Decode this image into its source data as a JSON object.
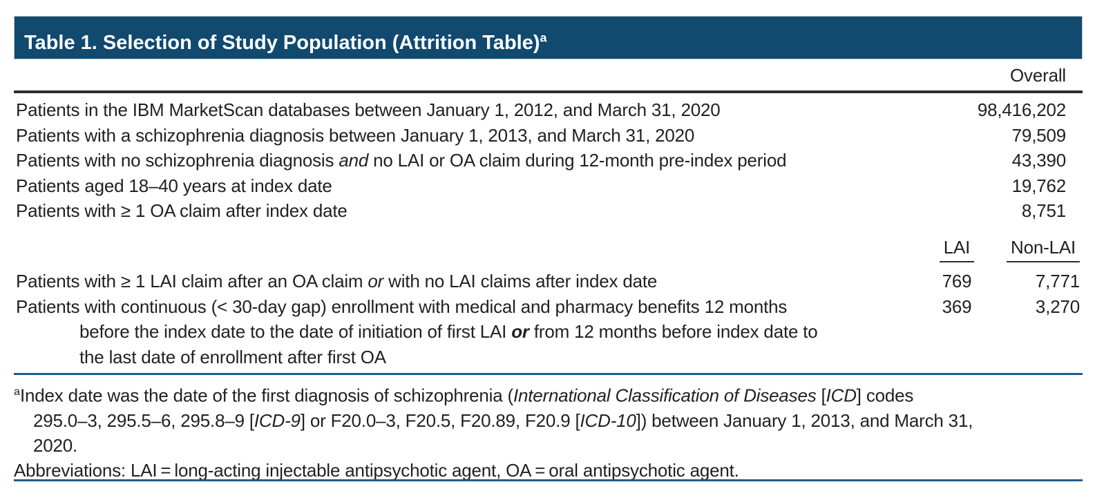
{
  "colors": {
    "header_bar": "#11496F",
    "rule_blue": "#1F5B8D",
    "rule_dark": "#2E2E2E",
    "text": "#231F20"
  },
  "table": {
    "title_runs": [
      {
        "t": "Table 1. Selection of Study Population (Attrition Table)"
      },
      {
        "t": "a",
        "sup": true
      }
    ],
    "header": {
      "overall": "Overall",
      "lai": "LAI",
      "nonlai": "Non-LAI"
    },
    "overall_rows": [
      {
        "label_runs": [
          {
            "t": "Patients in the IBM MarketScan databases between January 1, 2012, and March 31, 2020"
          }
        ],
        "value": "98,416,202"
      },
      {
        "label_runs": [
          {
            "t": "Patients with a schizophrenia diagnosis between January 1, 2013, and March 31, 2020"
          }
        ],
        "value": "79,509"
      },
      {
        "label_runs": [
          {
            "t": "Patients with no schizophrenia diagnosis "
          },
          {
            "t": "and",
            "i": true
          },
          {
            "t": " no LAI or OA claim during 12-month pre-index period"
          }
        ],
        "value": "43,390"
      },
      {
        "label_runs": [
          {
            "t": "Patients aged 18–40 years at index date"
          }
        ],
        "value": "19,762"
      },
      {
        "label_runs": [
          {
            "t": "Patients with ≥ 1 OA claim after index date"
          }
        ],
        "value": "8,751"
      }
    ],
    "group_rows": [
      {
        "label_runs": [
          {
            "t": "Patients with ≥ 1 LAI claim after an OA claim "
          },
          {
            "t": "or",
            "i": true
          },
          {
            "t": " with no LAI claims after index date"
          }
        ],
        "lai": "769",
        "nonlai": "7,771"
      },
      {
        "label_runs": [
          {
            "t": "Patients with continuous (< 30-day gap) enrollment with medical and pharmacy benefits 12 months"
          },
          {
            "br": true
          },
          {
            "t": "before the index date to the date of initiation of first LAI "
          },
          {
            "t": "or",
            "b": true,
            "i": true
          },
          {
            "t": " from 12 months before index date to"
          },
          {
            "br": true
          },
          {
            "t": "the last date of enrollment after first OA"
          }
        ],
        "lai": "369",
        "nonlai": "3,270"
      }
    ],
    "footnotes": {
      "a_runs": [
        {
          "t": "a",
          "sup": true
        },
        {
          "t": "Index date was the date of the first diagnosis of schizophrenia ("
        },
        {
          "t": "International Classification of Diseases",
          "i": true
        },
        {
          "t": " ["
        },
        {
          "t": "ICD",
          "i": true
        },
        {
          "t": "] codes"
        },
        {
          "br": true
        },
        {
          "t": "295.0–3, 295.5–6, 295.8–9 ["
        },
        {
          "t": "ICD-9",
          "i": true
        },
        {
          "t": "] or F20.0–3, F20.5, F20.89, F20.9 ["
        },
        {
          "t": "ICD-10",
          "i": true
        },
        {
          "t": "]) between January 1, 2013, and March 31,"
        },
        {
          "br": true
        },
        {
          "t": "2020."
        }
      ],
      "abbrev": "Abbreviations: LAI = long-acting injectable antipsychotic agent, OA = oral antipsychotic agent."
    }
  }
}
